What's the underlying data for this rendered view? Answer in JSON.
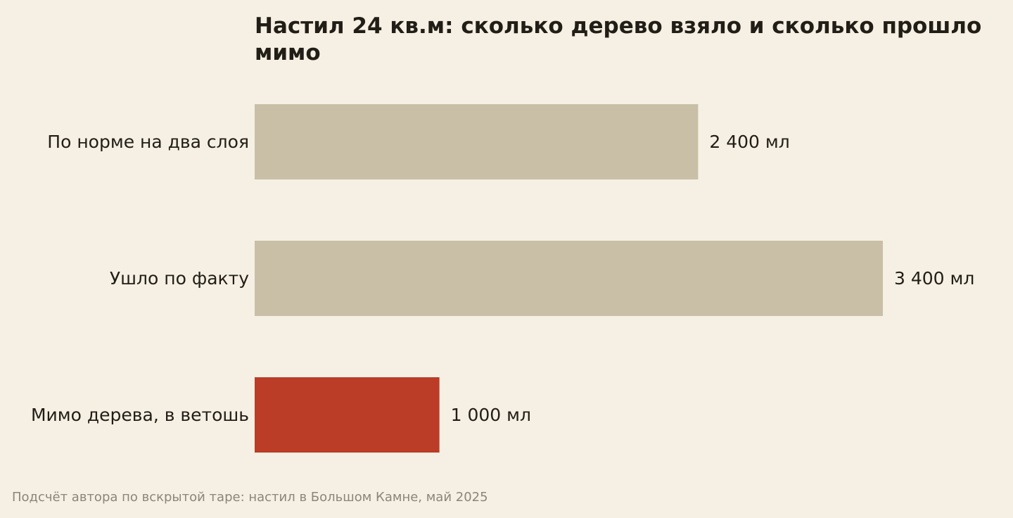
{
  "chart_data": {
    "type": "bar",
    "orientation": "horizontal",
    "title": "Настил 24 кв.м: сколько дерево взяло и сколько прошло мимо",
    "categories": [
      "По норме на два слоя",
      "Ушло по факту",
      "Мимо дерева, в ветошь"
    ],
    "values": [
      2400,
      3400,
      1000
    ],
    "value_labels": [
      "2 400 мл",
      "3 400 мл",
      "1 000 мл"
    ],
    "unit": "мл",
    "colors": [
      "#c9bfa7",
      "#c9bfa7",
      "#bb3c27"
    ],
    "xlim": [
      0,
      3400
    ],
    "grid": false,
    "legend": "none"
  },
  "source_note": "Подсчёт автора по вскрытой таре: настил в Большом Камне, май 2025",
  "colors": {
    "background": "#f5f0e3",
    "text": "#221d16",
    "muted_text": "#8b857a",
    "neutral_bar": "#c9bfa7",
    "accent_bar": "#bb3c27"
  }
}
